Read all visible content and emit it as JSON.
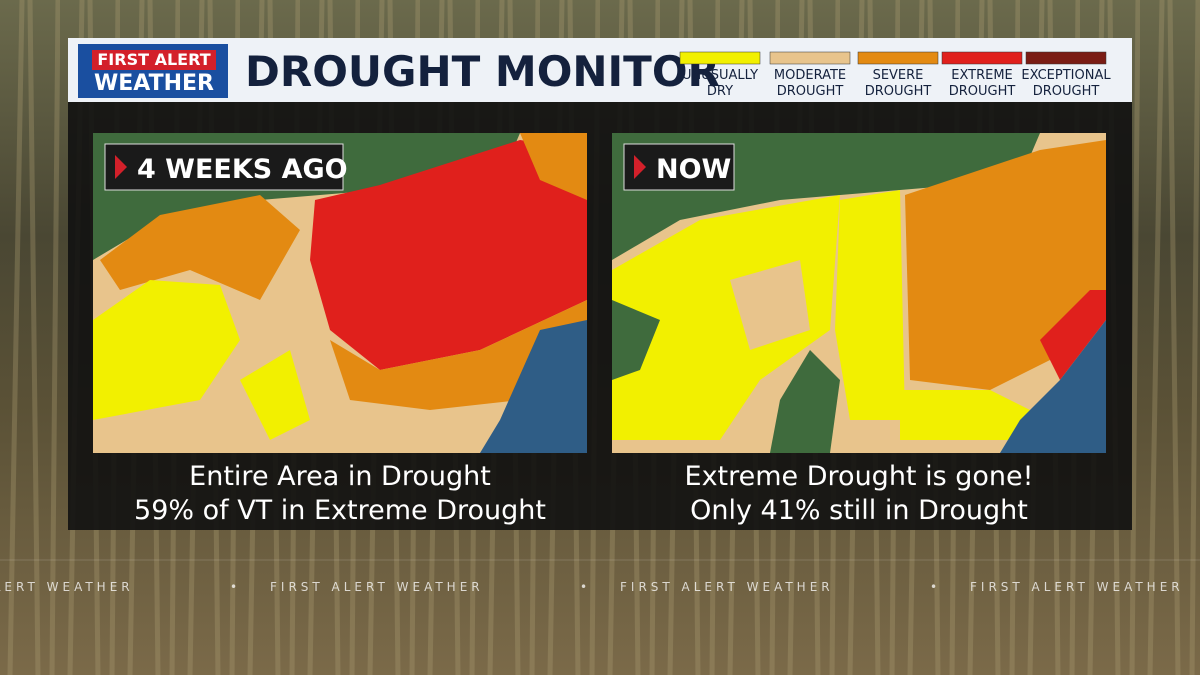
{
  "header": {
    "logo": [
      "FIRST ALERT",
      "WEATHER"
    ],
    "title": "DROUGHT MONITOR"
  },
  "legend": [
    {
      "label": [
        "UNUSUALLY",
        "DRY"
      ],
      "color": "#f2f000"
    },
    {
      "label": [
        "MODERATE",
        "DROUGHT"
      ],
      "color": "#e8c48c"
    },
    {
      "label": [
        "SEVERE",
        "DROUGHT"
      ],
      "color": "#e38a12"
    },
    {
      "label": [
        "EXTREME",
        "DROUGHT"
      ],
      "color": "#e0201c"
    },
    {
      "label": [
        "EXCEPTIONAL",
        "DROUGHT"
      ],
      "color": "#7a1c14"
    }
  ],
  "panels": [
    {
      "label": "4 WEEKS AGO",
      "caption": [
        "Entire Area in Drought",
        "59% of VT in Extreme Drought"
      ]
    },
    {
      "label": "NOW",
      "caption": [
        "Extreme Drought is gone!",
        "Only 41% still in Drought"
      ]
    }
  ],
  "ticker": {
    "text": "FIRST ALERT WEATHER",
    "separator": "•"
  }
}
